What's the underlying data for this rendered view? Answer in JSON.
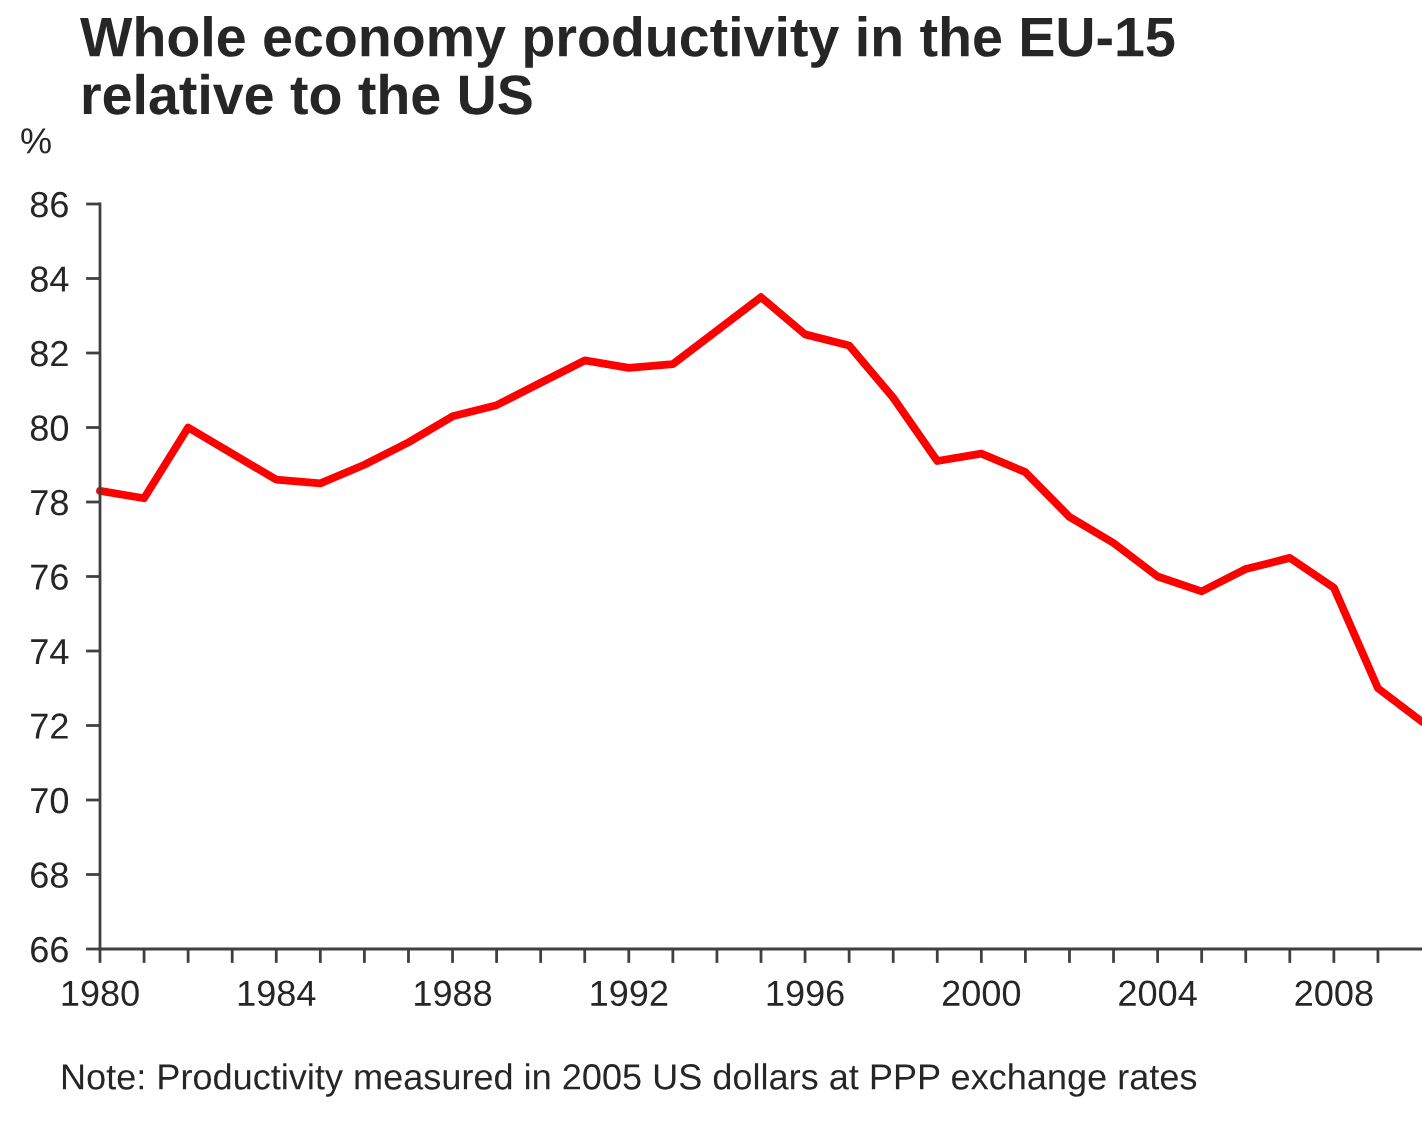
{
  "chart_data": {
    "type": "line",
    "title": "Whole economy productivity in the EU-15\nrelative to the US",
    "ylabel": "%",
    "x": [
      1980,
      1981,
      1982,
      1983,
      1984,
      1985,
      1986,
      1987,
      1988,
      1989,
      1990,
      1991,
      1992,
      1993,
      1994,
      1995,
      1996,
      1997,
      1998,
      1999,
      2000,
      2001,
      2002,
      2003,
      2004,
      2005,
      2006,
      2007,
      2008,
      2009,
      2010
    ],
    "series": [
      {
        "color": "#ff0000",
        "values": [
          78.3,
          78.1,
          80.0,
          79.3,
          78.6,
          78.5,
          79.0,
          79.6,
          80.3,
          80.6,
          81.2,
          81.8,
          81.6,
          81.7,
          82.6,
          83.5,
          82.5,
          82.2,
          80.8,
          79.1,
          79.3,
          78.8,
          77.6,
          76.9,
          76.0,
          75.6,
          76.2,
          76.5,
          75.7,
          73.0,
          72.1
        ]
      }
    ],
    "xlim": [
      1980,
      2010
    ],
    "xticks": [
      1980,
      {
        "value": 1981,
        "label": null
      },
      {
        "value": 1982,
        "label": null
      },
      {
        "value": 1983,
        "label": null
      },
      1984,
      {
        "value": 1985,
        "label": null
      },
      {
        "value": 1986,
        "label": null
      },
      {
        "value": 1987,
        "label": null
      },
      1988,
      {
        "value": 1989,
        "label": null
      },
      {
        "value": 1990,
        "label": null
      },
      {
        "value": 1991,
        "label": null
      },
      1992,
      {
        "value": 1993,
        "label": null
      },
      {
        "value": 1994,
        "label": null
      },
      {
        "value": 1995,
        "label": null
      },
      1996,
      {
        "value": 1997,
        "label": null
      },
      {
        "value": 1998,
        "label": null
      },
      {
        "value": 1999,
        "label": null
      },
      2000,
      {
        "value": 2001,
        "label": null
      },
      {
        "value": 2002,
        "label": null
      },
      {
        "value": 2003,
        "label": null
      },
      2004,
      {
        "value": 2005,
        "label": null
      },
      {
        "value": 2006,
        "label": null
      },
      {
        "value": 2007,
        "label": null
      },
      2008,
      {
        "value": 2009,
        "label": null
      }
    ],
    "ylim": [
      66,
      86
    ],
    "yticks": [
      66,
      68,
      70,
      72,
      74,
      76,
      78,
      80,
      82,
      84,
      86
    ],
    "grid": false,
    "legend": false,
    "marker": "none",
    "line_style": "solid",
    "annotations": [
      "Note: Productivity measured in 2005 US dollars at PPP exchange rates"
    ]
  }
}
